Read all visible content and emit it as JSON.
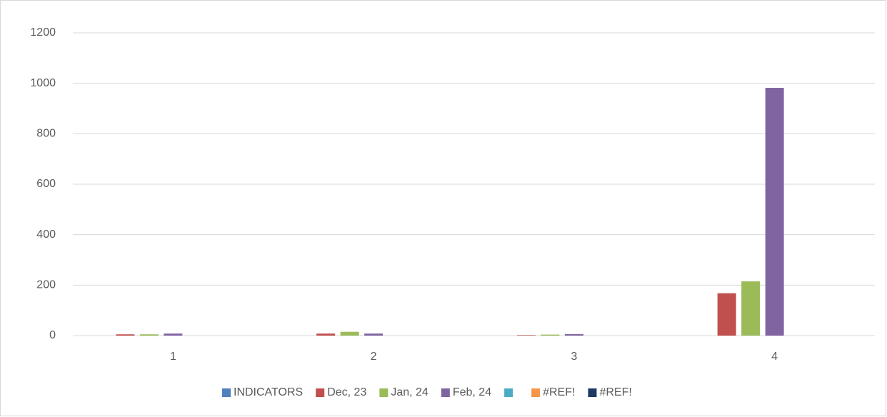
{
  "chart_data": {
    "type": "bar",
    "categories": [
      "1",
      "2",
      "3",
      "4"
    ],
    "series": [
      {
        "name": "INDICATORS",
        "color": "#4f81bd",
        "values": [
          0,
          0,
          0,
          0
        ]
      },
      {
        "name": "Dec, 23",
        "color": "#c0504d",
        "values": [
          5,
          8,
          2,
          168
        ]
      },
      {
        "name": "Jan, 24",
        "color": "#9bbb59",
        "values": [
          5,
          15,
          4,
          215
        ]
      },
      {
        "name": "Feb, 24",
        "color": "#8064a2",
        "values": [
          8,
          8,
          6,
          982
        ]
      },
      {
        "name": null,
        "color": "#4bacc6",
        "values": [
          0,
          0,
          0,
          0
        ]
      },
      {
        "name": "#REF!",
        "color": "#f79646",
        "values": [
          0,
          0,
          0,
          0
        ]
      },
      {
        "name": "#REF!",
        "color": "#1f3864",
        "values": [
          0,
          0,
          0,
          0
        ]
      }
    ],
    "ylim": [
      0,
      1200
    ],
    "yticks": [
      0,
      200,
      400,
      600,
      800,
      1000,
      1200
    ],
    "grid": true,
    "legend": "bottom"
  }
}
